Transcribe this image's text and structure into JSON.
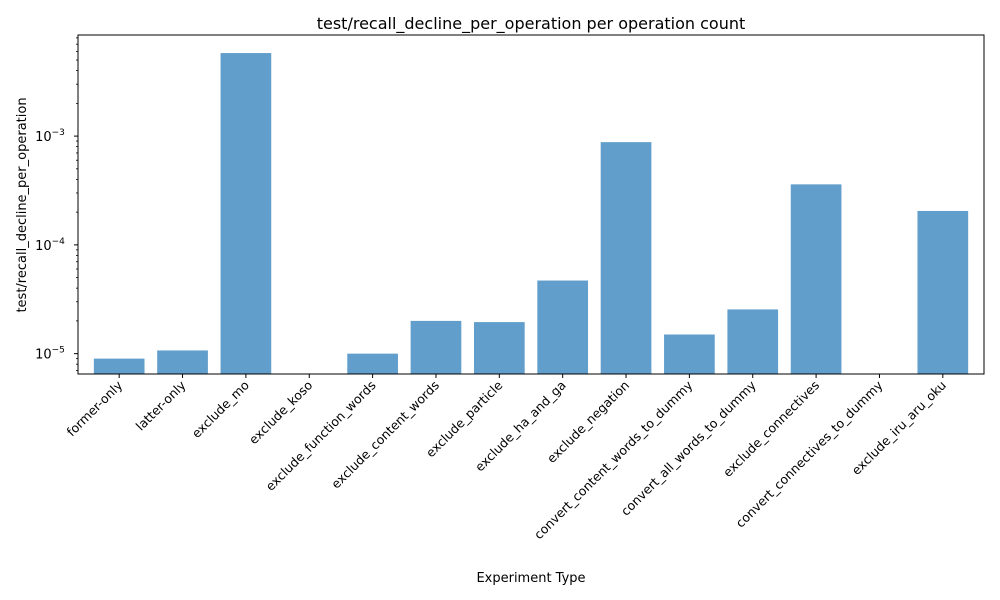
{
  "chart_data": {
    "type": "bar",
    "title": "test/recall_decline_per_operation per operation count",
    "xlabel": "Experiment Type",
    "ylabel": "test/recall_decline_per_operation",
    "yscale": "log",
    "ylim": [
      6.5e-06,
      0.0085
    ],
    "yticks": [
      {
        "value": 1e-05,
        "base": "10",
        "exp": "−5"
      },
      {
        "value": 0.0001,
        "base": "10",
        "exp": "−4"
      },
      {
        "value": 0.001,
        "base": "10",
        "exp": "−3"
      }
    ],
    "bar_color": "#619ecb",
    "grid": false,
    "categories": [
      "former-only",
      "latter-only",
      "exclude_mo",
      "exclude_koso",
      "exclude_function_words",
      "exclude_content_words",
      "exclude_particle",
      "exclude_ha_and_ga",
      "exclude_negation",
      "convert_content_words_to_dummy",
      "convert_all_words_to_dummy",
      "exclude_connectives",
      "convert_connectives_to_dummy",
      "exclude_iru_aru_oku"
    ],
    "values": [
      9e-06,
      1.07e-05,
      0.0058,
      null,
      1e-05,
      2e-05,
      1.95e-05,
      4.7e-05,
      0.00088,
      1.5e-05,
      2.55e-05,
      0.00036,
      null,
      0.000205
    ]
  }
}
